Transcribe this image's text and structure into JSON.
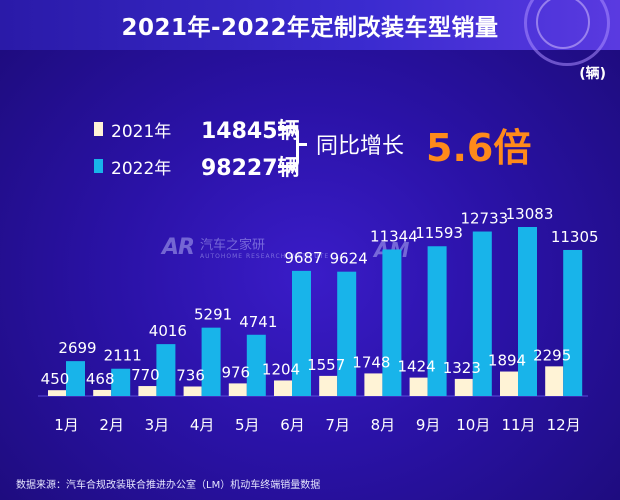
{
  "header": {
    "title": "2021年-2022年定制改装车型销量"
  },
  "unit_label": "(辆)",
  "summary": {
    "rows": [
      {
        "year": "2021年",
        "total": "14845辆"
      },
      {
        "year": "2022年",
        "total": "98227辆"
      }
    ],
    "yoy_label": "同比增长",
    "yoy_value": "5.6倍"
  },
  "watermarks": {
    "logo_left": "AR",
    "text_left": "汽车之家研",
    "sub_left": "AUTOHOME RESEARCH INSTITUTE",
    "logo_right": "AM"
  },
  "colors": {
    "series_2021": "#fff3d6",
    "series_2022": "#18b4ea",
    "accent": "#ff8a1a"
  },
  "chart_data": {
    "type": "bar",
    "title": "2021年-2022年定制改装车型销量",
    "ylabel": "(辆)",
    "categories": [
      "1月",
      "2月",
      "3月",
      "4月",
      "5月",
      "6月",
      "7月",
      "8月",
      "9月",
      "10月",
      "11月",
      "12月"
    ],
    "series": [
      {
        "name": "2021年",
        "values": [
          450,
          468,
          770,
          736,
          976,
          1204,
          1557,
          1748,
          1424,
          1323,
          1894,
          2295
        ]
      },
      {
        "name": "2022年",
        "values": [
          2699,
          2111,
          4016,
          5291,
          4741,
          9687,
          9624,
          11344,
          11593,
          12733,
          13083,
          11305
        ]
      }
    ],
    "ylim": [
      0,
      13500
    ],
    "grid": false
  },
  "footnote": "数据来源：汽车合规改装联合推进办公室（LM）机动车终端销量数据"
}
